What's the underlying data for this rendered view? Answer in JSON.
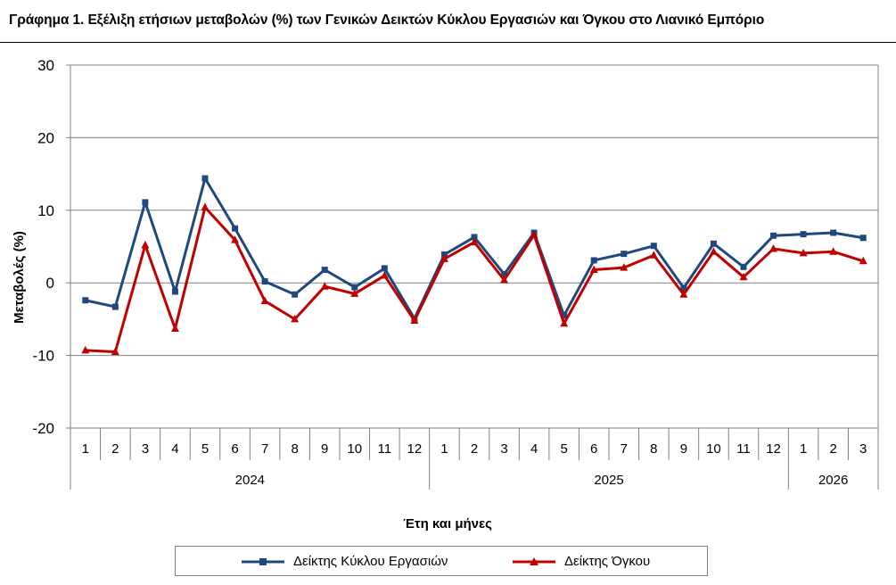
{
  "page": {
    "title": "Γράφημα 1. Εξέλιξη ετήσιων μεταβολών (%) των Γενικών Δεικτών Κύκλου Εργασιών και Όγκου στο Λιανικό Εμπόριο"
  },
  "colors": {
    "turnover": "#1f497d",
    "volume": "#c00000",
    "grid": "#808080",
    "axis": "#808080"
  },
  "chart_data": {
    "type": "line",
    "title": "",
    "xlabel": "Έτη και μήνες",
    "ylabel": "Μεταβολές  (%)",
    "ylim": [
      -20,
      30
    ],
    "yticks": [
      30,
      20,
      10,
      0,
      -10,
      -20
    ],
    "grid": true,
    "legend_position": "bottom",
    "categories": [
      "1",
      "2",
      "3",
      "4",
      "5",
      "6",
      "7",
      "8",
      "9",
      "10",
      "11",
      "12",
      "1",
      "2",
      "3",
      "4",
      "5",
      "6",
      "7",
      "8",
      "9",
      "10",
      "11",
      "12",
      "1",
      "2",
      "3"
    ],
    "groups": [
      {
        "label": "2024",
        "count": 12
      },
      {
        "label": "2025",
        "count": 12
      },
      {
        "label": "2026",
        "count": 3
      }
    ],
    "series": [
      {
        "name": "Δείκτης Κύκλου Εργασιών",
        "color": "#1f497d",
        "marker": "square",
        "values": [
          -2.4,
          -3.3,
          11.1,
          -1.2,
          14.4,
          7.5,
          0.2,
          -1.6,
          1.8,
          -0.6,
          2.0,
          -4.9,
          3.9,
          6.3,
          1.2,
          6.9,
          -4.5,
          3.1,
          4.0,
          5.1,
          -0.7,
          5.4,
          2.2,
          6.5,
          6.7,
          6.9,
          6.2
        ]
      },
      {
        "name": "Δείκτης Όγκου",
        "color": "#c00000",
        "marker": "triangle",
        "values": [
          -9.3,
          -9.5,
          5.2,
          -6.3,
          10.4,
          5.9,
          -2.5,
          -5.0,
          -0.5,
          -1.5,
          1.0,
          -5.2,
          3.3,
          5.6,
          0.4,
          6.6,
          -5.6,
          1.8,
          2.1,
          3.8,
          -1.6,
          4.3,
          0.8,
          4.7,
          4.1,
          4.3,
          3.0
        ]
      }
    ]
  }
}
